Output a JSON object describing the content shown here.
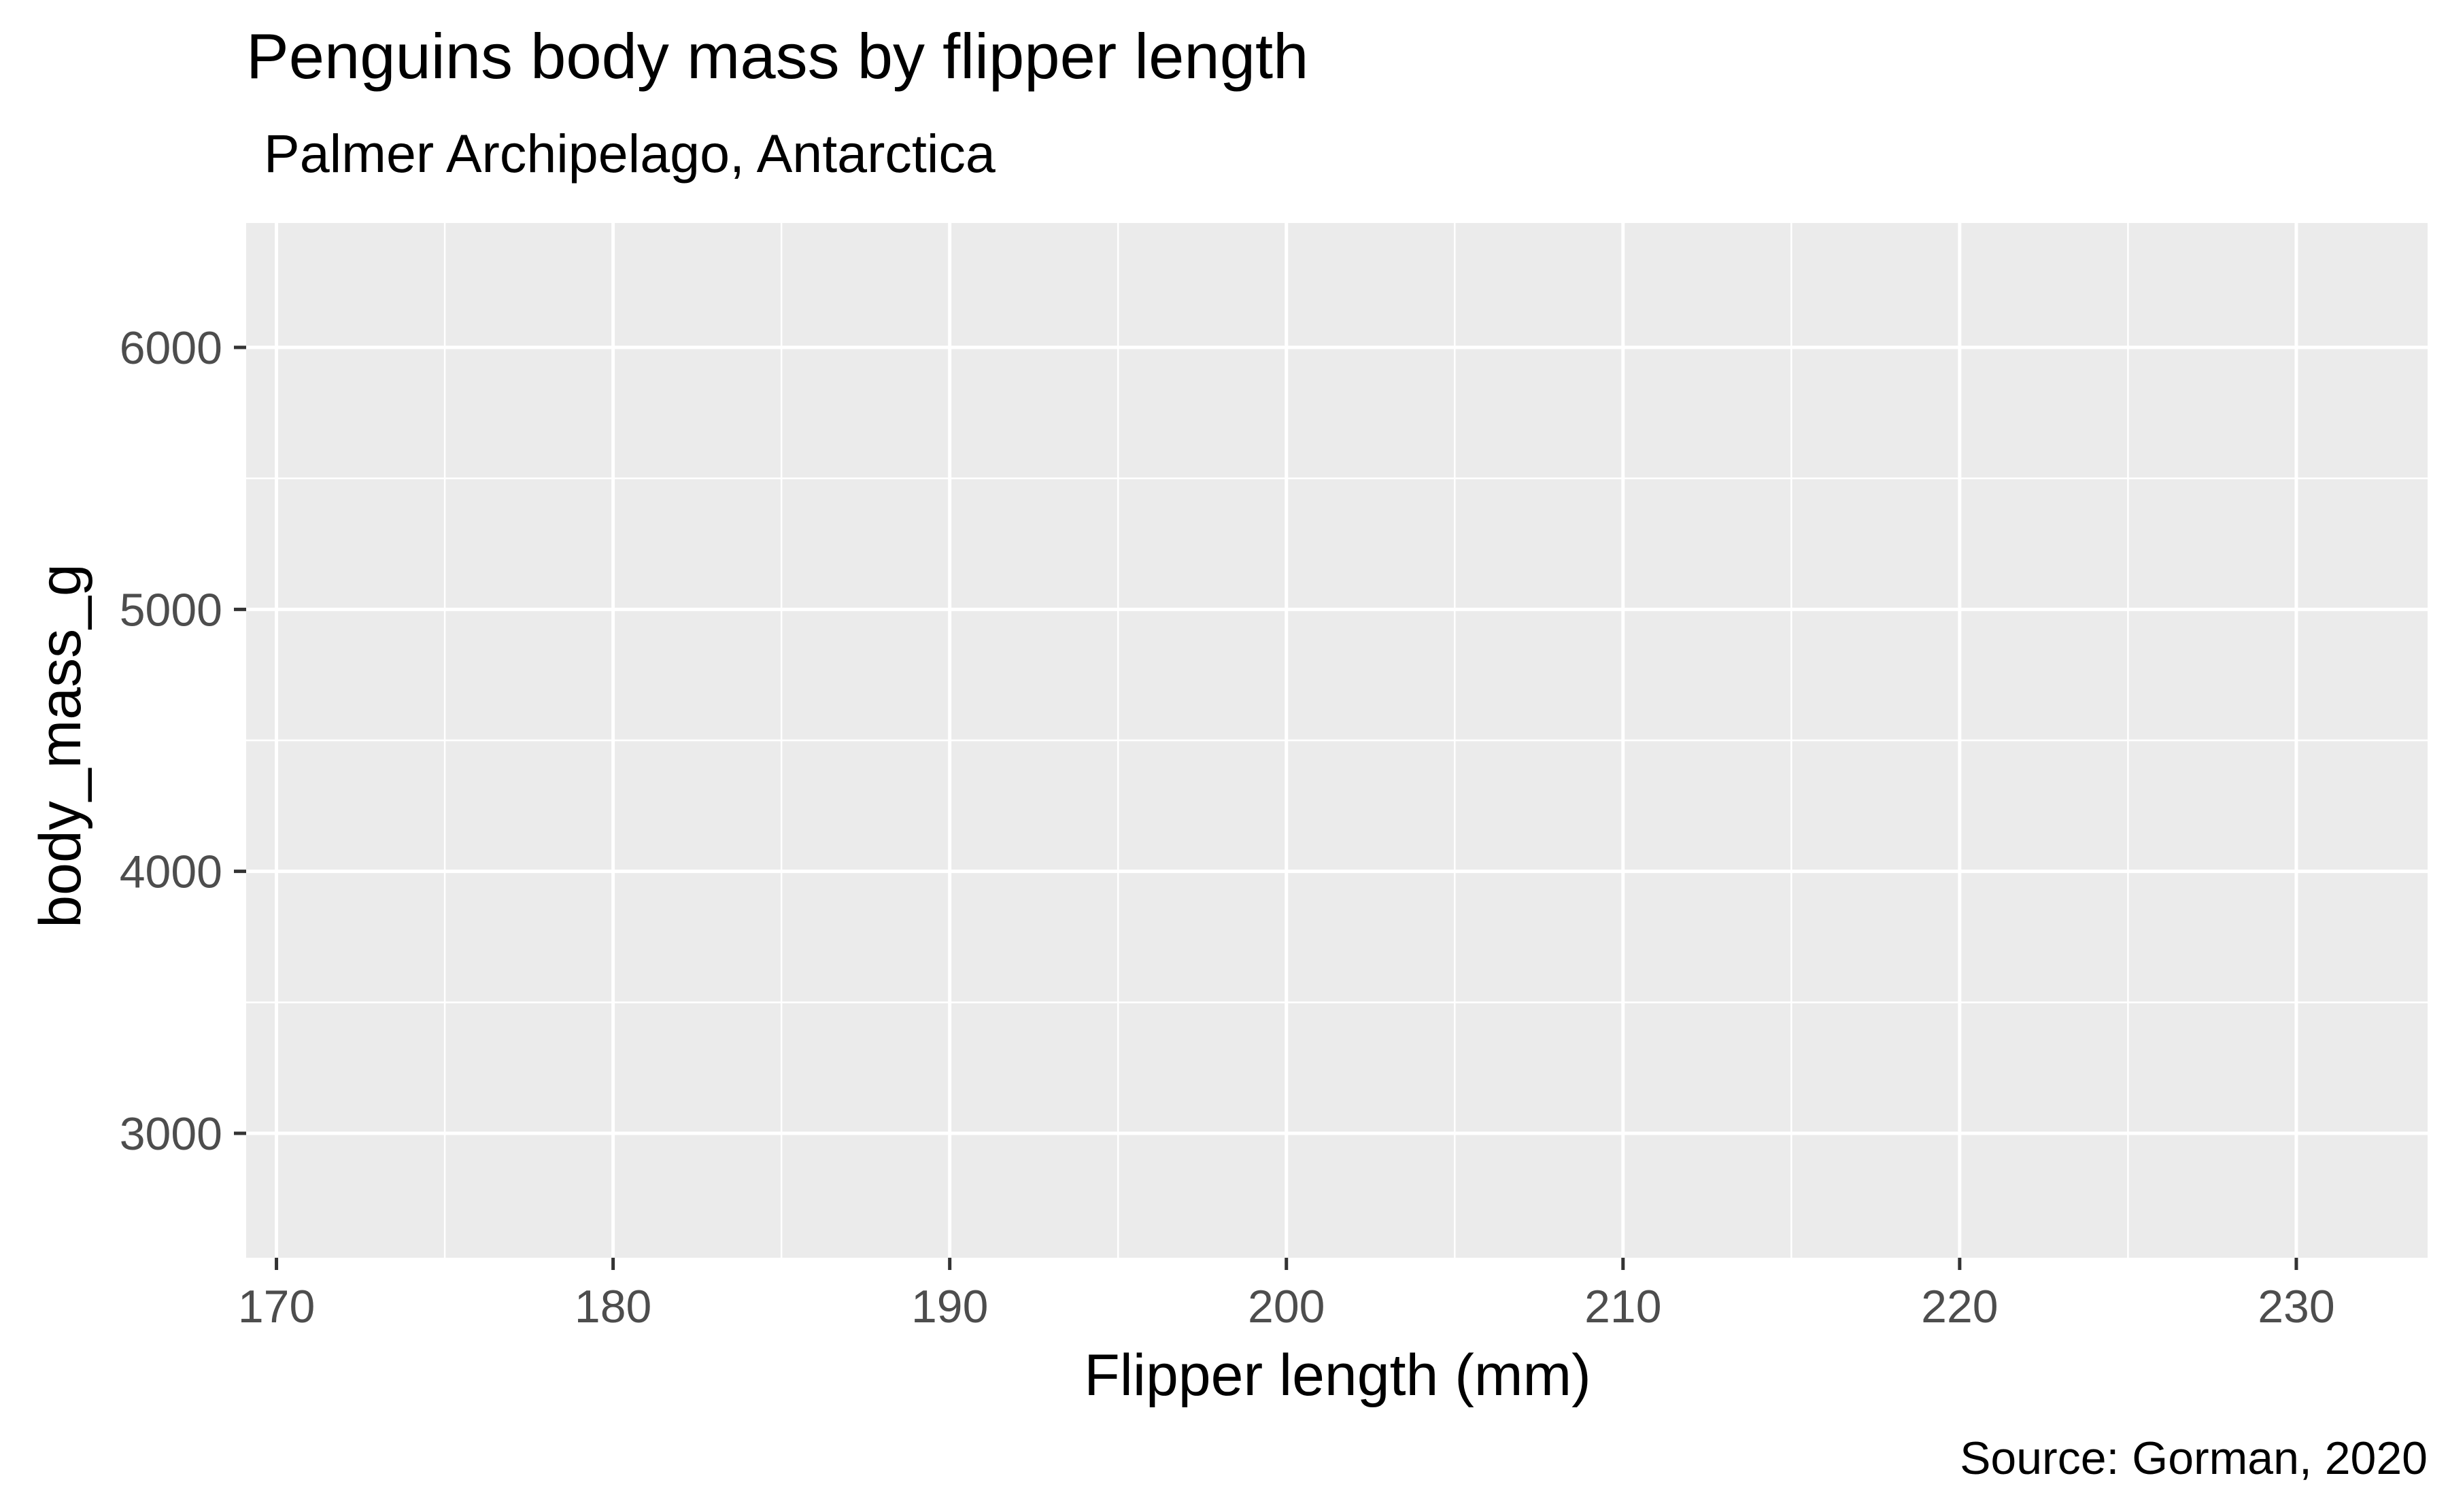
{
  "chart_data": {
    "type": "scatter",
    "title": "Penguins body mass by flipper length",
    "subtitle": "Palmer Archipelago, Antarctica",
    "xlabel": "Flipper length (mm)",
    "ylabel": "body_mass_g",
    "caption": "Source: Gorman, 2020",
    "xlim": [
      169.1,
      233.9
    ],
    "ylim": [
      2525,
      6475
    ],
    "x_ticks": [
      170,
      180,
      190,
      200,
      210,
      220,
      230
    ],
    "x_tick_labels": [
      "170",
      "180",
      "190",
      "200",
      "210",
      "220",
      "230"
    ],
    "y_ticks": [
      3000,
      4000,
      5000,
      6000
    ],
    "y_tick_labels": [
      "3000",
      "4000",
      "5000",
      "6000"
    ],
    "x_minor_ticks": [
      175,
      185,
      195,
      205,
      215,
      225
    ],
    "y_minor_ticks": [
      3500,
      4500,
      5500
    ],
    "grid": true,
    "legend": "none",
    "series": [
      {
        "x": [],
        "y": []
      }
    ],
    "colors": {
      "panel_background": "#ebebeb",
      "grid_major": "#ffffff",
      "grid_minor": "#ffffff",
      "tick_label": "#4d4d4d",
      "axis_ticks": "#333333",
      "text": "#000000"
    }
  }
}
